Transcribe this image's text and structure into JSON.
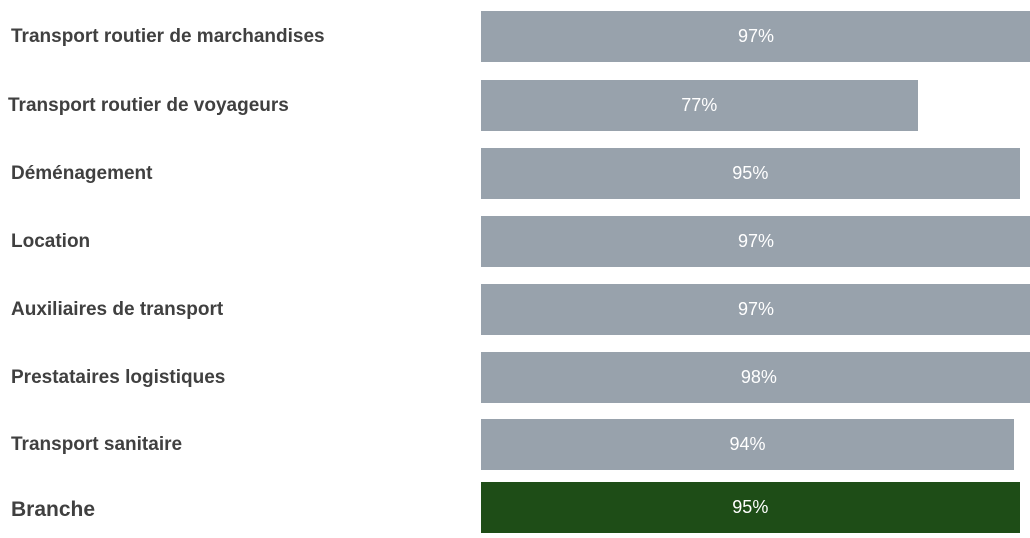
{
  "chart_data": {
    "type": "bar",
    "orientation": "horizontal",
    "categories": [
      "Transport routier de marchandises",
      "Transport routier de voyageurs",
      "Déménagement",
      "Location",
      "Auxiliaires de transport",
      "Prestataires logistiques",
      "Transport sanitaire",
      "Branche"
    ],
    "values": [
      97,
      77,
      95,
      97,
      97,
      98,
      94,
      95
    ],
    "value_labels": [
      "97%",
      "77%",
      "95%",
      "97%",
      "97%",
      "98%",
      "94%",
      "95%"
    ],
    "unit": "%",
    "xlim": [
      0,
      100
    ],
    "grid": false,
    "legend": "none",
    "colors": {
      "bar": "#98a2ac",
      "highlight_bar": "#1e4d17",
      "category_text": "#404040",
      "value_text": "#ffffff"
    },
    "highlight_category": "Branche"
  }
}
